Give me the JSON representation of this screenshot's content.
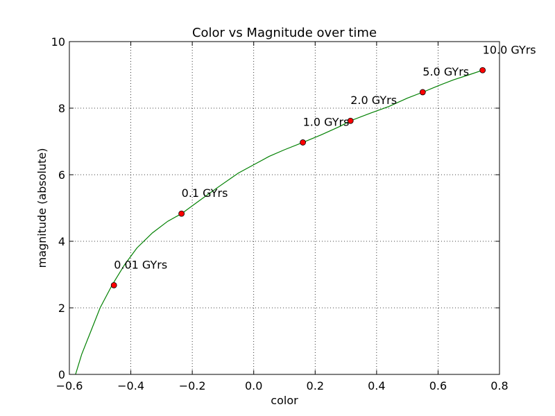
{
  "chart_data": {
    "type": "line",
    "title": "Color vs Magnitude over time",
    "xlabel": "color",
    "ylabel": "magnitude (absolute)",
    "xlim": [
      -0.6,
      0.8
    ],
    "ylim": [
      0,
      10
    ],
    "grid": true,
    "x_ticks": [
      -0.6,
      -0.4,
      -0.2,
      0.0,
      0.2,
      0.4,
      0.6,
      0.8
    ],
    "x_tick_labels": [
      "−0.6",
      "−0.4",
      "−0.2",
      "0.0",
      "0.2",
      "0.4",
      "0.6",
      "0.8"
    ],
    "y_ticks": [
      0,
      2,
      4,
      6,
      8,
      10
    ],
    "y_tick_labels": [
      "0",
      "2",
      "4",
      "6",
      "8",
      "10"
    ],
    "curve": {
      "color": "#008000",
      "x": [
        -0.58,
        -0.56,
        -0.53,
        -0.5,
        -0.46,
        -0.42,
        -0.38,
        -0.33,
        -0.28,
        -0.235,
        -0.18,
        -0.12,
        -0.05,
        0.0,
        0.05,
        0.1,
        0.16,
        0.22,
        0.28,
        0.315,
        0.38,
        0.44,
        0.5,
        0.55,
        0.6,
        0.65,
        0.7,
        0.745
      ],
      "y": [
        0.0,
        0.6,
        1.3,
        2.0,
        2.7,
        3.3,
        3.8,
        4.25,
        4.6,
        4.83,
        5.2,
        5.6,
        6.05,
        6.3,
        6.55,
        6.75,
        6.97,
        7.2,
        7.45,
        7.62,
        7.85,
        8.05,
        8.3,
        8.48,
        8.67,
        8.85,
        9.0,
        9.14
      ]
    },
    "points": {
      "color": "#ff0000",
      "x": [
        -0.455,
        -0.235,
        0.16,
        0.315,
        0.55,
        0.745
      ],
      "y": [
        2.68,
        4.83,
        6.97,
        7.62,
        8.48,
        9.14
      ],
      "labels": [
        "0.01 GYrs",
        "0.1 GYrs",
        "1.0 GYrs",
        "2.0 GYrs",
        "5.0 GYrs",
        "10.0 GYrs"
      ]
    }
  }
}
